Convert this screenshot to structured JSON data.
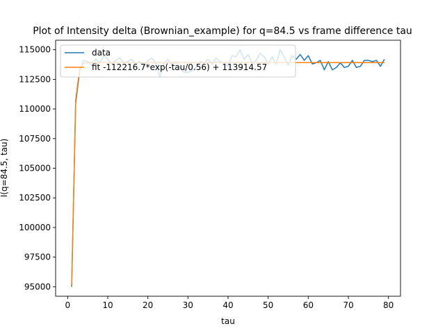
{
  "chart_data": {
    "type": "line",
    "title": "Plot of Intensity delta (Brownian_example) for q=84.5 vs frame difference tau",
    "xlabel": "tau",
    "ylabel": "I(q=84.5, tau)",
    "xlim": [
      -3,
      83
    ],
    "ylim": [
      94200,
      115800
    ],
    "xticks": [
      0,
      10,
      20,
      30,
      40,
      50,
      60,
      70,
      80
    ],
    "yticks": [
      95000,
      97500,
      100000,
      102500,
      105000,
      107500,
      110000,
      112500,
      115000
    ],
    "grid": false,
    "legend_position": "top-left",
    "series": [
      {
        "name": "data",
        "color": "#1f77b4",
        "x": [
          1,
          2,
          3,
          4,
          5,
          6,
          7,
          8,
          9,
          10,
          11,
          12,
          13,
          14,
          15,
          16,
          17,
          18,
          19,
          20,
          21,
          22,
          23,
          24,
          25,
          26,
          27,
          28,
          29,
          30,
          31,
          32,
          33,
          34,
          35,
          36,
          37,
          38,
          39,
          40,
          41,
          42,
          43,
          44,
          45,
          46,
          47,
          48,
          49,
          50,
          51,
          52,
          53,
          54,
          55,
          56,
          57,
          58,
          59,
          60,
          61,
          62,
          63,
          64,
          65,
          66,
          67,
          68,
          69,
          70,
          71,
          72,
          73,
          74,
          75,
          76,
          77,
          78,
          79
        ],
        "y": [
          95000,
          110500,
          113200,
          114100,
          114000,
          113700,
          114200,
          113900,
          114500,
          114200,
          113800,
          114100,
          114300,
          113900,
          114000,
          114200,
          113800,
          114000,
          113600,
          114100,
          114300,
          113900,
          112700,
          113800,
          114200,
          113700,
          114000,
          113500,
          113100,
          113100,
          113200,
          113500,
          114000,
          113900,
          114200,
          113800,
          114300,
          114000,
          113900,
          113600,
          114500,
          114400,
          115000,
          114200,
          114600,
          113900,
          114100,
          114700,
          114400,
          113800,
          114400,
          113800,
          115000,
          114400,
          113700,
          114500,
          114200,
          114600,
          114100,
          114500,
          113800,
          113900,
          114100,
          113300,
          114000,
          113300,
          113500,
          113900,
          113500,
          113600,
          114100,
          113500,
          113600,
          114100,
          114100,
          114000,
          114100,
          113600,
          114200
        ]
      },
      {
        "name": "fit -112216.7*exp(-tau/0.56) + 113914.57",
        "color": "#ff7f0e",
        "fit": {
          "A": -112216.7,
          "tau0": 0.56,
          "C": 113914.57
        },
        "x_range": [
          1,
          79
        ]
      }
    ]
  }
}
